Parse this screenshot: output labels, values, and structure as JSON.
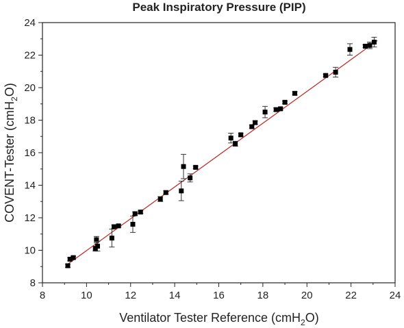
{
  "chart_data": {
    "type": "scatter",
    "title": "Peak Inspiratory Pressure (PIP)",
    "xlabel": {
      "before": "Ventilator Tester Reference (cmH",
      "sub": "2",
      "after": "O)"
    },
    "ylabel": {
      "before": "COVENT-Tester (cmH",
      "sub": "2",
      "after": "O)"
    },
    "xlim": [
      8,
      24
    ],
    "ylim": [
      8,
      24
    ],
    "xticks": [
      8,
      10,
      12,
      14,
      16,
      18,
      20,
      22,
      24
    ],
    "yticks": [
      8,
      10,
      12,
      14,
      16,
      18,
      20,
      22,
      24
    ],
    "grid": false,
    "marker_color": "#000000",
    "fit_line_color": "#c0302a",
    "fit_line": {
      "x": [
        9.1,
        23.2
      ],
      "y": [
        9.1,
        22.9
      ]
    },
    "points": [
      {
        "x": 9.15,
        "y": 9.05,
        "err": 0.1
      },
      {
        "x": 9.25,
        "y": 9.45,
        "err": 0.1
      },
      {
        "x": 9.4,
        "y": 9.55,
        "err": 0.08
      },
      {
        "x": 10.4,
        "y": 10.1,
        "err": 0.15
      },
      {
        "x": 10.45,
        "y": 10.65,
        "err": 0.2
      },
      {
        "x": 10.5,
        "y": 10.25,
        "err": 0.3
      },
      {
        "x": 11.15,
        "y": 10.75,
        "err": 0.55
      },
      {
        "x": 11.25,
        "y": 11.45,
        "err": 0.1
      },
      {
        "x": 11.45,
        "y": 11.5,
        "err": 0.08
      },
      {
        "x": 12.1,
        "y": 11.6,
        "err": 0.5
      },
      {
        "x": 12.2,
        "y": 12.25,
        "err": 0.1
      },
      {
        "x": 12.45,
        "y": 12.35,
        "err": 0.08
      },
      {
        "x": 13.35,
        "y": 13.15,
        "err": 0.15
      },
      {
        "x": 13.6,
        "y": 13.55,
        "err": 0.1
      },
      {
        "x": 14.3,
        "y": 13.65,
        "err": 0.6
      },
      {
        "x": 14.4,
        "y": 15.15,
        "err": 0.75
      },
      {
        "x": 14.7,
        "y": 14.45,
        "err": 0.25
      },
      {
        "x": 14.95,
        "y": 15.1,
        "err": 0.08
      },
      {
        "x": 16.55,
        "y": 16.9,
        "err": 0.3
      },
      {
        "x": 16.75,
        "y": 16.55,
        "err": 0.15
      },
      {
        "x": 17.0,
        "y": 17.1,
        "err": 0.08
      },
      {
        "x": 17.5,
        "y": 17.6,
        "err": 0.1
      },
      {
        "x": 17.65,
        "y": 17.85,
        "err": 0.1
      },
      {
        "x": 18.1,
        "y": 18.5,
        "err": 0.35
      },
      {
        "x": 18.6,
        "y": 18.65,
        "err": 0.1
      },
      {
        "x": 18.8,
        "y": 18.7,
        "err": 0.08
      },
      {
        "x": 19.0,
        "y": 19.1,
        "err": 0.08
      },
      {
        "x": 19.45,
        "y": 19.65,
        "err": 0.1
      },
      {
        "x": 20.85,
        "y": 20.75,
        "err": 0.08
      },
      {
        "x": 21.3,
        "y": 20.95,
        "err": 0.3
      },
      {
        "x": 21.95,
        "y": 22.35,
        "err": 0.35
      },
      {
        "x": 22.65,
        "y": 22.55,
        "err": 0.08
      },
      {
        "x": 22.85,
        "y": 22.6,
        "err": 0.2
      },
      {
        "x": 23.05,
        "y": 22.8,
        "err": 0.3
      }
    ]
  }
}
